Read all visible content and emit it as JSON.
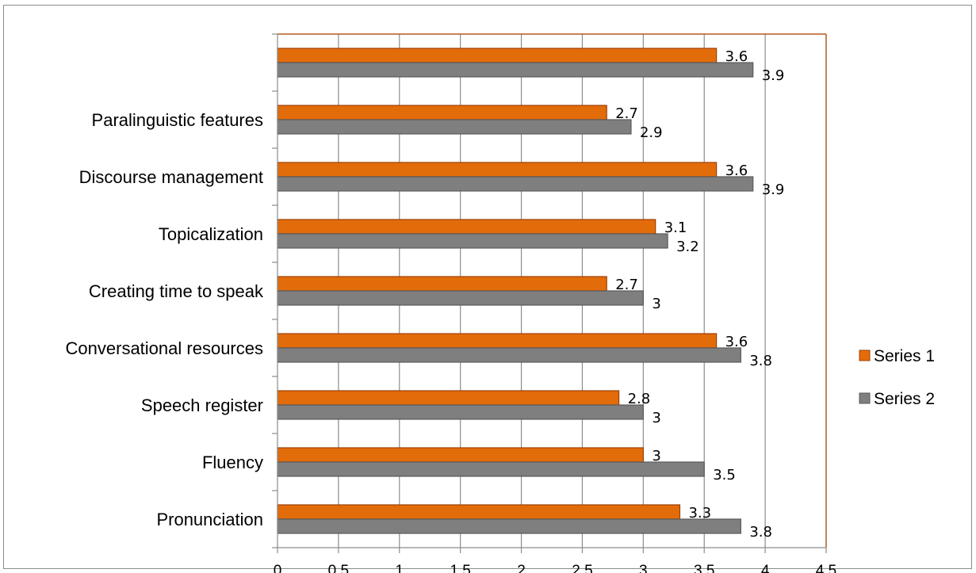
{
  "chart_data": {
    "type": "bar",
    "orientation": "horizontal",
    "categories": [
      "Pronunciation",
      "Fluency",
      "Speech register",
      "Conversational resources",
      "Creating time to speak",
      "Topicalization",
      "Discourse management",
      "Paralinguistic features",
      ""
    ],
    "series": [
      {
        "name": "Series 1",
        "color": "#e36c0a",
        "values": [
          3.3,
          3,
          2.8,
          3.6,
          2.7,
          3.1,
          3.6,
          2.7,
          3.6
        ]
      },
      {
        "name": "Series 2",
        "color": "#7f7f7f",
        "values": [
          3.8,
          3.5,
          3,
          3.8,
          3,
          3.2,
          3.9,
          2.9,
          3.9
        ]
      }
    ],
    "data_labels": [
      [
        "3.3",
        "3",
        "2.8",
        "3.6",
        "2.7",
        "3.1",
        "3.6",
        "2.7",
        "3.6"
      ],
      [
        "3.8",
        "3.5",
        "3",
        "3.8",
        "3",
        "3.2",
        "3.9",
        "2.9",
        "3.9"
      ]
    ],
    "xlim": [
      0,
      4.5
    ],
    "xticks": [
      "0",
      "0.5",
      "1",
      "1.5",
      "2",
      "2.5",
      "3",
      "3.5",
      "4",
      "4.5"
    ],
    "xtick_values": [
      0,
      0.5,
      1,
      1.5,
      2,
      2.5,
      3,
      3.5,
      4,
      4.5
    ],
    "grid": "vertical",
    "legend_position": "right",
    "title": "",
    "xlabel": "",
    "ylabel": "",
    "colors": {
      "plot_border": "#b35a1f",
      "grid": "#8c8c8c",
      "axis": "#8c8c8c",
      "bar_edge_1": "#9c3f06",
      "bar_edge_2": "#5a5a5a"
    }
  }
}
